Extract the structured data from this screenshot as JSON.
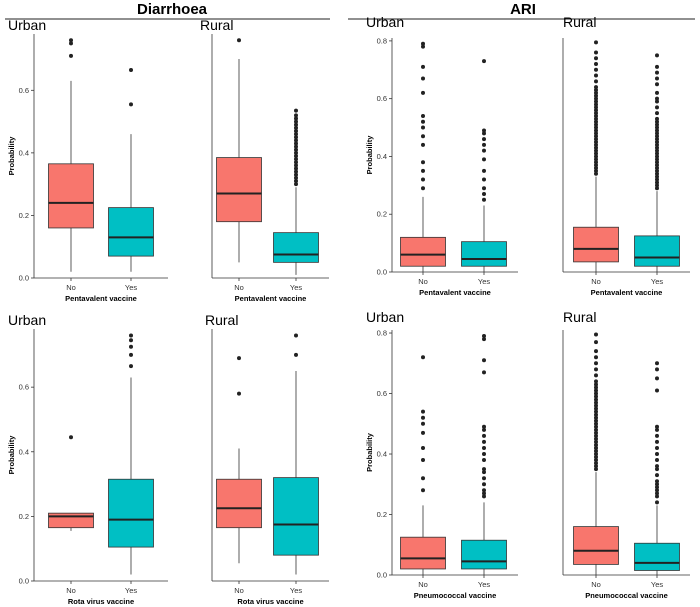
{
  "sections": [
    {
      "title": "Diarrhoea"
    },
    {
      "title": "ARI"
    }
  ],
  "chart_data": [
    {
      "type": "boxplot",
      "section": "Diarrhoea",
      "panel_title": "Urban",
      "xlabel": "Pentavalent vaccine",
      "ylabel": "Probability",
      "categories": [
        "No",
        "Yes"
      ],
      "colors": [
        "#F8766D",
        "#00BFC4"
      ],
      "ylim": [
        0,
        0.78
      ],
      "yticks": [
        0.0,
        0.2,
        0.4,
        0.6
      ],
      "boxes": [
        {
          "category": "No",
          "whisker_low": 0.02,
          "q1": 0.16,
          "median": 0.24,
          "q3": 0.365,
          "whisker_high": 0.63,
          "outliers": [
            0.71,
            0.75,
            0.76
          ]
        },
        {
          "category": "Yes",
          "whisker_low": 0.02,
          "q1": 0.07,
          "median": 0.13,
          "q3": 0.225,
          "whisker_high": 0.46,
          "outliers": [
            0.555,
            0.665
          ]
        }
      ]
    },
    {
      "type": "boxplot",
      "section": "Diarrhoea",
      "panel_title": "Rural",
      "xlabel": "Pentavalent vaccine",
      "ylabel": "",
      "categories": [
        "No",
        "Yes"
      ],
      "colors": [
        "#F8766D",
        "#00BFC4"
      ],
      "ylim": [
        0,
        0.78
      ],
      "yticks": [],
      "boxes": [
        {
          "category": "No",
          "whisker_low": 0.05,
          "q1": 0.18,
          "median": 0.27,
          "q3": 0.385,
          "whisker_high": 0.7,
          "outliers": [
            0.76
          ]
        },
        {
          "category": "Yes",
          "whisker_low": 0.01,
          "q1": 0.05,
          "median": 0.075,
          "q3": 0.145,
          "whisker_high": 0.29,
          "outliers": [
            0.3,
            0.31,
            0.32,
            0.33,
            0.34,
            0.35,
            0.36,
            0.37,
            0.38,
            0.39,
            0.4,
            0.41,
            0.42,
            0.43,
            0.44,
            0.45,
            0.46,
            0.47,
            0.48,
            0.49,
            0.5,
            0.51,
            0.52,
            0.535
          ]
        }
      ]
    },
    {
      "type": "boxplot",
      "section": "ARI",
      "panel_title": "Urban",
      "xlabel": "Pentavalent vaccine",
      "ylabel": "Probability",
      "categories": [
        "No",
        "Yes"
      ],
      "colors": [
        "#F8766D",
        "#00BFC4"
      ],
      "ylim": [
        0,
        0.81
      ],
      "yticks": [
        0.0,
        0.2,
        0.4,
        0.6,
        0.8
      ],
      "boxes": [
        {
          "category": "No",
          "whisker_low": 0.0,
          "q1": 0.02,
          "median": 0.06,
          "q3": 0.12,
          "whisker_high": 0.26,
          "outliers": [
            0.29,
            0.32,
            0.35,
            0.38,
            0.44,
            0.47,
            0.5,
            0.52,
            0.54,
            0.62,
            0.67,
            0.71,
            0.78,
            0.79
          ]
        },
        {
          "category": "Yes",
          "whisker_low": 0.0,
          "q1": 0.02,
          "median": 0.045,
          "q3": 0.105,
          "whisker_high": 0.23,
          "outliers": [
            0.25,
            0.27,
            0.29,
            0.32,
            0.35,
            0.39,
            0.42,
            0.44,
            0.46,
            0.48,
            0.49,
            0.73
          ]
        }
      ]
    },
    {
      "type": "boxplot",
      "section": "ARI",
      "panel_title": "Rural",
      "xlabel": "Pentavalent vaccine",
      "ylabel": "",
      "categories": [
        "No",
        "Yes"
      ],
      "colors": [
        "#F8766D",
        "#00BFC4"
      ],
      "ylim": [
        0,
        0.81
      ],
      "yticks": [],
      "boxes": [
        {
          "category": "No",
          "whisker_low": 0.0,
          "q1": 0.035,
          "median": 0.08,
          "q3": 0.155,
          "whisker_high": 0.33,
          "outliers": [
            0.34,
            0.35,
            0.36,
            0.37,
            0.38,
            0.39,
            0.4,
            0.41,
            0.42,
            0.43,
            0.44,
            0.45,
            0.46,
            0.47,
            0.48,
            0.49,
            0.5,
            0.51,
            0.52,
            0.53,
            0.54,
            0.55,
            0.56,
            0.57,
            0.58,
            0.59,
            0.6,
            0.61,
            0.62,
            0.63,
            0.64,
            0.66,
            0.68,
            0.7,
            0.72,
            0.74,
            0.76,
            0.795
          ]
        },
        {
          "category": "Yes",
          "whisker_low": 0.0,
          "q1": 0.02,
          "median": 0.05,
          "q3": 0.125,
          "whisker_high": 0.28,
          "outliers": [
            0.29,
            0.3,
            0.31,
            0.32,
            0.33,
            0.34,
            0.35,
            0.36,
            0.37,
            0.38,
            0.39,
            0.4,
            0.41,
            0.42,
            0.43,
            0.44,
            0.45,
            0.46,
            0.47,
            0.48,
            0.49,
            0.5,
            0.51,
            0.52,
            0.53,
            0.55,
            0.57,
            0.59,
            0.6,
            0.62,
            0.65,
            0.67,
            0.69,
            0.71,
            0.75
          ]
        }
      ]
    },
    {
      "type": "boxplot",
      "section": "Diarrhoea",
      "panel_title": "Urban",
      "xlabel": "Rota virus vaccine",
      "ylabel": "Probability",
      "categories": [
        "No",
        "Yes"
      ],
      "colors": [
        "#F8766D",
        "#00BFC4"
      ],
      "ylim": [
        0,
        0.78
      ],
      "yticks": [
        0.0,
        0.2,
        0.4,
        0.6
      ],
      "boxes": [
        {
          "category": "No",
          "whisker_low": 0.155,
          "q1": 0.165,
          "median": 0.2,
          "q3": 0.21,
          "whisker_high": 0.21,
          "outliers": [
            0.445
          ]
        },
        {
          "category": "Yes",
          "whisker_low": 0.02,
          "q1": 0.105,
          "median": 0.19,
          "q3": 0.315,
          "whisker_high": 0.63,
          "outliers": [
            0.665,
            0.7,
            0.725,
            0.745,
            0.76
          ]
        }
      ]
    },
    {
      "type": "boxplot",
      "section": "Diarrhoea",
      "panel_title": "Rural",
      "xlabel": "Rota virus vaccine",
      "ylabel": "",
      "categories": [
        "No",
        "Yes"
      ],
      "colors": [
        "#F8766D",
        "#00BFC4"
      ],
      "ylim": [
        0,
        0.78
      ],
      "yticks": [],
      "boxes": [
        {
          "category": "No",
          "whisker_low": 0.055,
          "q1": 0.165,
          "median": 0.225,
          "q3": 0.315,
          "whisker_high": 0.41,
          "outliers": [
            0.58,
            0.69
          ]
        },
        {
          "category": "Yes",
          "whisker_low": 0.02,
          "q1": 0.08,
          "median": 0.175,
          "q3": 0.32,
          "whisker_high": 0.65,
          "outliers": [
            0.7,
            0.76
          ]
        }
      ]
    },
    {
      "type": "boxplot",
      "section": "ARI",
      "panel_title": "Urban",
      "xlabel": "Pneumococcal vaccine",
      "ylabel": "Probability",
      "categories": [
        "No",
        "Yes"
      ],
      "colors": [
        "#F8766D",
        "#00BFC4"
      ],
      "ylim": [
        0,
        0.81
      ],
      "yticks": [
        0.0,
        0.2,
        0.4,
        0.6,
        0.8
      ],
      "boxes": [
        {
          "category": "No",
          "whisker_low": 0.0,
          "q1": 0.02,
          "median": 0.055,
          "q3": 0.125,
          "whisker_high": 0.23,
          "outliers": [
            0.28,
            0.32,
            0.38,
            0.42,
            0.47,
            0.5,
            0.52,
            0.54,
            0.72
          ]
        },
        {
          "category": "Yes",
          "whisker_low": 0.0,
          "q1": 0.02,
          "median": 0.045,
          "q3": 0.115,
          "whisker_high": 0.24,
          "outliers": [
            0.26,
            0.27,
            0.28,
            0.3,
            0.32,
            0.34,
            0.35,
            0.38,
            0.4,
            0.42,
            0.44,
            0.46,
            0.48,
            0.49,
            0.67,
            0.71,
            0.78,
            0.79
          ]
        }
      ]
    },
    {
      "type": "boxplot",
      "section": "ARI",
      "panel_title": "Rural",
      "xlabel": "Pneumococcal vaccine",
      "ylabel": "",
      "categories": [
        "No",
        "Yes"
      ],
      "colors": [
        "#F8766D",
        "#00BFC4"
      ],
      "ylim": [
        0,
        0.81
      ],
      "yticks": [],
      "boxes": [
        {
          "category": "No",
          "whisker_low": 0.0,
          "q1": 0.035,
          "median": 0.08,
          "q3": 0.16,
          "whisker_high": 0.34,
          "outliers": [
            0.35,
            0.36,
            0.37,
            0.38,
            0.39,
            0.4,
            0.41,
            0.42,
            0.43,
            0.44,
            0.45,
            0.46,
            0.47,
            0.48,
            0.49,
            0.5,
            0.51,
            0.52,
            0.53,
            0.54,
            0.55,
            0.56,
            0.57,
            0.58,
            0.59,
            0.6,
            0.61,
            0.62,
            0.63,
            0.64,
            0.66,
            0.68,
            0.7,
            0.72,
            0.74,
            0.77,
            0.795
          ]
        },
        {
          "category": "Yes",
          "whisker_low": 0.0,
          "q1": 0.015,
          "median": 0.04,
          "q3": 0.105,
          "whisker_high": 0.23,
          "outliers": [
            0.24,
            0.26,
            0.27,
            0.28,
            0.29,
            0.3,
            0.31,
            0.33,
            0.35,
            0.36,
            0.38,
            0.4,
            0.42,
            0.44,
            0.46,
            0.48,
            0.49,
            0.61,
            0.65,
            0.68,
            0.7
          ]
        }
      ]
    }
  ]
}
